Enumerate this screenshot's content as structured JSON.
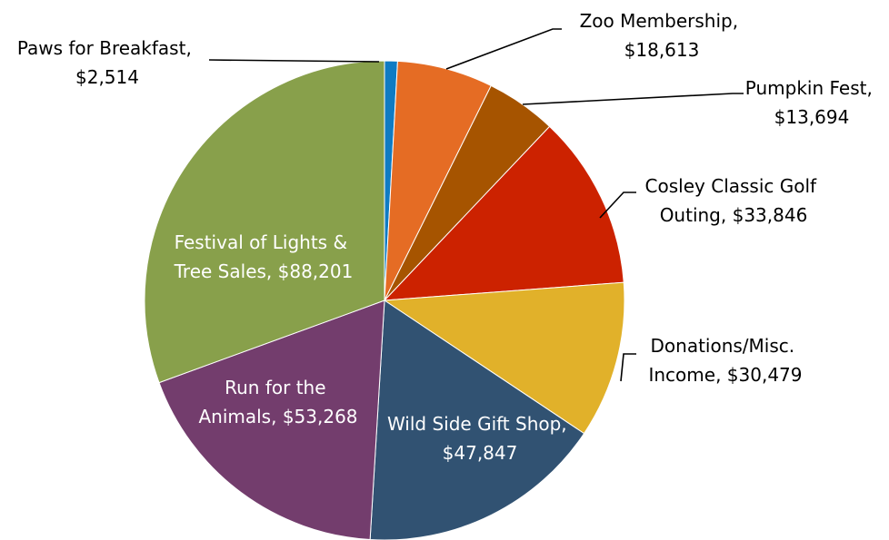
{
  "chart_data": {
    "type": "pie",
    "title": "",
    "slices": [
      {
        "category": "Paws for Breakfast",
        "value": 2514,
        "value_label": "$2,514",
        "color": "#0F7BC3"
      },
      {
        "category": "Zoo Membership",
        "value": 18613,
        "value_label": "$18,613",
        "color": "#E56C24"
      },
      {
        "category": "Pumpkin Fest",
        "value": 13694,
        "value_label": "$13,694",
        "color": "#A65400"
      },
      {
        "category": "Cosley Classic Golf Outing",
        "value": 33846,
        "value_label": "$33,846",
        "color": "#CC2200"
      },
      {
        "category": "Donations/Misc. Income",
        "value": 30479,
        "value_label": "$30,479",
        "color": "#E1B12A"
      },
      {
        "category": "Wild Side Gift Shop",
        "value": 47847,
        "value_label": "$47,847",
        "color": "#315272"
      },
      {
        "category": "Run for the Animals",
        "value": 53268,
        "value_label": "$53,268",
        "color": "#733D6D"
      },
      {
        "category": "Festival of Lights & Tree Sales",
        "value": 88201,
        "value_label": "$88,201",
        "color": "#88A04B"
      }
    ],
    "data_labels": [
      {
        "lines": [
          "Paws for Breakfast,",
          "$2,514"
        ]
      },
      {
        "lines": [
          "Zoo Membership,",
          "$18,613"
        ]
      },
      {
        "lines": [
          "Pumpkin Fest,",
          "$13,694"
        ]
      },
      {
        "lines": [
          "Cosley Classic Golf",
          "Outing, $33,846"
        ]
      },
      {
        "lines": [
          "Donations/Misc.",
          "Income, $30,479"
        ]
      },
      {
        "lines": [
          "Wild Side Gift Shop,",
          "$47,847"
        ]
      },
      {
        "lines": [
          "Run for the",
          "Animals, $53,268"
        ]
      },
      {
        "lines": [
          "Festival of Lights &",
          "Tree Sales, $88,201"
        ]
      }
    ],
    "start_angle_deg": 0,
    "direction": "clockwise",
    "legend": "none"
  }
}
